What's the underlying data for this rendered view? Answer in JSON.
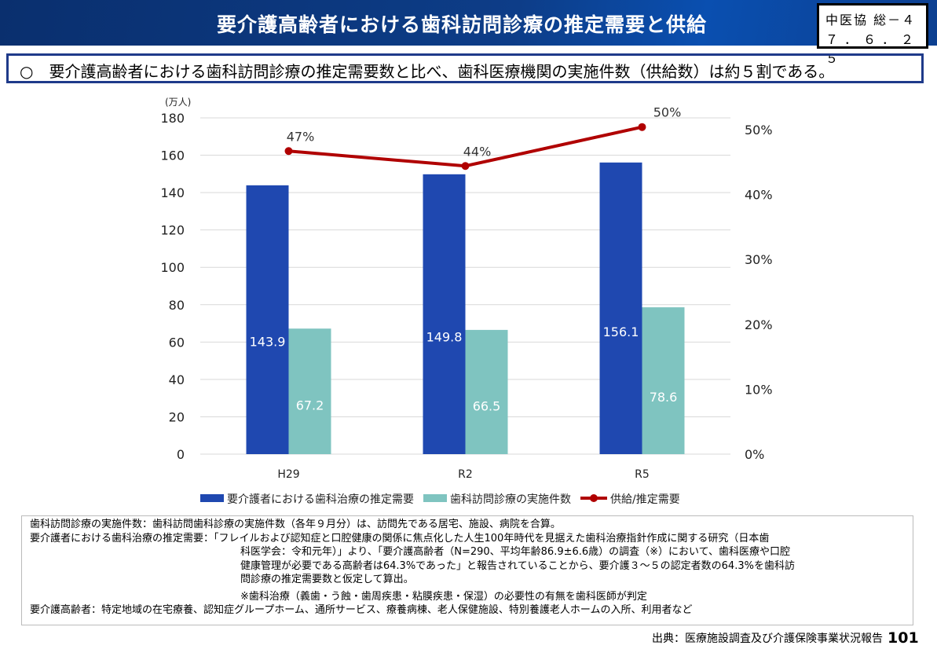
{
  "header": {
    "title": "要介護高齢者における歯科訪問診療の推定需要と供給",
    "stamp_line1": "中医協 総－４",
    "stamp_line2": "７．６．２５"
  },
  "summary": "○　要介護高齢者における歯科訪問診療の推定需要数と比べ、歯科医療機関の実施件数（供給数）は約５割である。",
  "chart_data": {
    "type": "bar+line",
    "categories": [
      "H29",
      "R2",
      "R5"
    ],
    "y_unit": "(万人)",
    "ylim": [
      0,
      180
    ],
    "yticks": [
      0,
      20,
      40,
      60,
      80,
      100,
      120,
      140,
      160,
      180
    ],
    "y2lim": [
      0,
      50
    ],
    "y2ticks": [
      "0%",
      "10%",
      "20%",
      "30%",
      "40%",
      "50%"
    ],
    "series": [
      {
        "name": "要介護者における歯科治療の推定需要",
        "type": "bar",
        "color": "#1f48b0",
        "values": [
          143.9,
          149.8,
          156.1
        ],
        "labels": [
          "143.9",
          "149.8",
          "156.1"
        ]
      },
      {
        "name": "歯科訪問診療の実施件数",
        "type": "bar",
        "color": "#7fc4c0",
        "values": [
          67.2,
          66.5,
          78.6
        ],
        "labels": [
          "67.2",
          "66.5",
          "78.6"
        ]
      },
      {
        "name": "供給/推定需要",
        "type": "line",
        "axis": "right",
        "color": "#b00000",
        "values": [
          46.7,
          44.4,
          50.4
        ],
        "labels": [
          "47%",
          "44%",
          "50%"
        ]
      }
    ],
    "legend": "bottom",
    "grid": true
  },
  "notes": [
    "歯科訪問診療の実施件数：歯科訪問歯科診療の実施件数（各年９月分）は、訪問先である居宅、施設、病院を合算。",
    "要介護者における歯科治療の推定需要：「フレイルおよび認知症と口腔健康の関係に焦点化した人生100年時代を見据えた歯科治療指針作成に関する研究（日本歯",
    "科医学会：令和元年）」より、「要介護高齢者（N=290、平均年齢86.9±6.6歳）の調査（※）において、歯科医療や口腔",
    "健康管理が必要である高齢者は64.3%であった」と報告されていることから、要介護３～５の認定者数の64.3%を歯科訪",
    "問診療の推定需要数と仮定して算出。",
    "※歯科治療（義歯・う蝕・歯周疾患・粘膜疾患・保湿）の必要性の有無を歯科医師が判定",
    "要介護高齢者：特定地域の在宅療養、認知症グループホーム、通所サービス、療養病棟、老人保健施設、特別養護老人ホームの入所、利用者など"
  ],
  "source": "出典：医療施設調査及び介護保険事業状況報告",
  "page": "101"
}
